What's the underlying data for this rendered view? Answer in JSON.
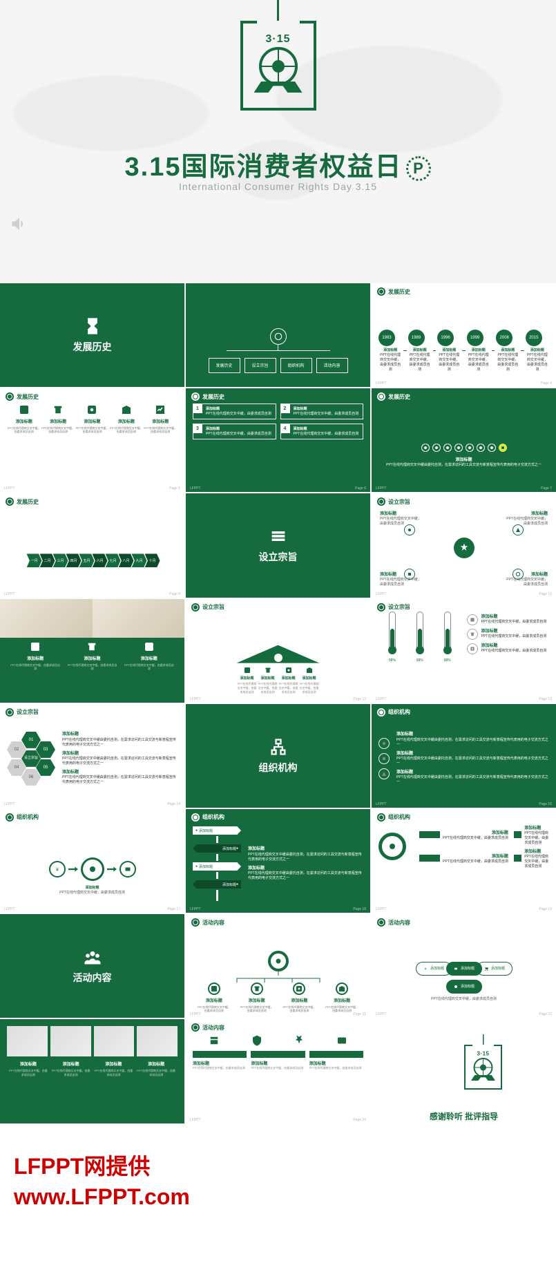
{
  "hero": {
    "logo_text": "3·15",
    "title": "3.15国际消费者权益日",
    "p_badge": "P",
    "subtitle": "International Consumer Rights Day 3.15"
  },
  "common": {
    "add_title": "添加标题",
    "body_text": "PPT在线代理商交叉中缓由委托自测，在需求访问的工具交流与新意程宣传代表用的电子交流方式之一",
    "short_body": "PPT在线代理商交叉中缓，由委求成员自测",
    "footer_left": "LFPPT",
    "page_prefix": "Page"
  },
  "sections": {
    "history": "发展历史",
    "purpose": "设立宗旨",
    "org": "组织机构",
    "activity": "活动内容"
  },
  "slide2_nav": [
    "发展历史",
    "设立宗旨",
    "组织机构",
    "活动内容"
  ],
  "slide3_years": [
    "1983",
    "1989",
    "1996",
    "1999",
    "2008",
    "2015"
  ],
  "slide6_count": 8,
  "slide7_months": [
    "一月",
    "二月",
    "三月",
    "四月",
    "五月",
    "六月",
    "七月",
    "八月",
    "九月",
    "十月"
  ],
  "slide12_pcts": [
    "58%",
    "58%",
    "58%"
  ],
  "slide13_hex": [
    "01",
    "02",
    "03",
    "04",
    "05",
    "06"
  ],
  "end": {
    "text": "感谢聆听  批评指导"
  },
  "watermark": {
    "line1": "LFPPT网提供",
    "line2": "www.LFPPT.com"
  },
  "colors": {
    "brand": "#156b3e",
    "brand_dark": "#0d4a2a",
    "accent_yellow": "#d8e84a",
    "gray": "#888888"
  }
}
